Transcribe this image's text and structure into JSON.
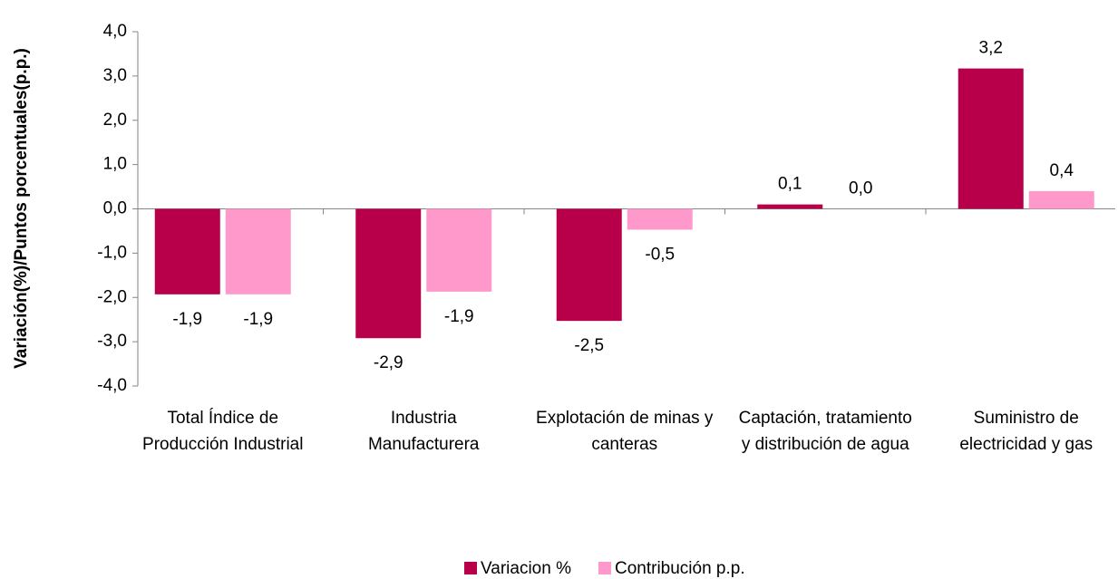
{
  "chart_data": {
    "type": "bar",
    "y_label": "Variación(%)/Puntos porcentuales(p.p.)",
    "categories": [
      "Total Índice de Producción Industrial",
      "Industria Manufacturera",
      "Explotación de minas y canteras",
      "Captación, tratamiento y distribución de agua",
      "Suministro de electricidad y gas"
    ],
    "series": [
      {
        "name": "Variacion %",
        "color": "#b8004a",
        "values": [
          -1.93,
          -2.92,
          -2.53,
          0.1,
          3.17
        ],
        "value_labels": [
          "-1,9",
          "-2,9",
          "-2,5",
          "0,1",
          "3,2"
        ]
      },
      {
        "name": "Contribución p.p.",
        "color": "#ff99cc",
        "values": [
          -1.93,
          -1.87,
          -0.47,
          0.0,
          0.4
        ],
        "value_labels": [
          "-1,9",
          "-1,9",
          "-0,5",
          "0,0",
          "0,4"
        ]
      }
    ],
    "ylim": [
      -4,
      4
    ],
    "yticks": [
      {
        "value": -4,
        "label": "-4,0"
      },
      {
        "value": -3,
        "label": "-3,0"
      },
      {
        "value": -2,
        "label": "-2,0"
      },
      {
        "value": -1,
        "label": "-1,0"
      },
      {
        "value": 0,
        "label": "0,0"
      },
      {
        "value": 1,
        "label": "1,0"
      },
      {
        "value": 2,
        "label": "2,0"
      },
      {
        "value": 3,
        "label": "3,0"
      },
      {
        "value": 4,
        "label": "4,0"
      }
    ],
    "legend": "bottom"
  }
}
